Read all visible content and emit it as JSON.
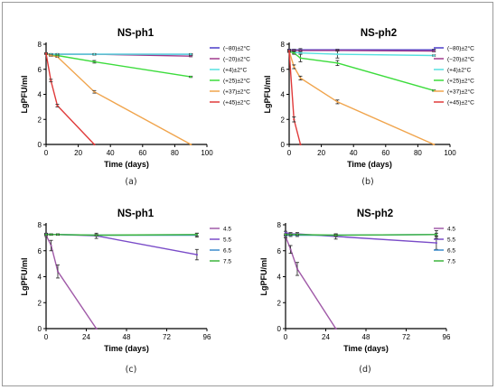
{
  "chart_data": [
    {
      "type": "line",
      "title": "NS-ph1",
      "caption": "(a)",
      "xlabel": "Time (days)",
      "ylabel": "LgPFU/ml",
      "xlim": [
        0,
        100
      ],
      "ylim": [
        0,
        8
      ],
      "xticks": [
        0,
        20,
        40,
        60,
        80,
        100
      ],
      "yticks": [
        0,
        2,
        4,
        6,
        8
      ],
      "legend_position": "right",
      "series": [
        {
          "name": "(−80)±2°C",
          "color": "#4b3cc8",
          "x": [
            0,
            3,
            7,
            30,
            90
          ],
          "y": [
            7.25,
            7.2,
            7.2,
            7.2,
            7.2
          ],
          "err": [
            0.05,
            0.05,
            0.05,
            0.05,
            0.05
          ]
        },
        {
          "name": "(−20)±2°C",
          "color": "#a03a8c",
          "x": [
            0,
            3,
            7,
            30,
            90
          ],
          "y": [
            7.25,
            7.2,
            7.2,
            7.2,
            7.05
          ],
          "err": [
            0.05,
            0.05,
            0.05,
            0.05,
            0.05
          ]
        },
        {
          "name": "(+4)±2°C",
          "color": "#55e0e0",
          "x": [
            0,
            3,
            7,
            30,
            90
          ],
          "y": [
            7.25,
            7.2,
            7.2,
            7.2,
            7.2
          ],
          "err": [
            0.05,
            0.05,
            0.05,
            0.05,
            0.05
          ]
        },
        {
          "name": "(+25)±2°C",
          "color": "#3cdc3c",
          "x": [
            0,
            3,
            7,
            30,
            90
          ],
          "y": [
            7.25,
            7.1,
            7.1,
            6.6,
            5.4
          ],
          "err": [
            0.05,
            0.05,
            0.05,
            0.1,
            0.05
          ]
        },
        {
          "name": "(+37)±2°C",
          "color": "#f0a44c",
          "x": [
            0,
            3,
            7,
            30,
            90
          ],
          "y": [
            7.25,
            7.1,
            7.0,
            4.2,
            0
          ],
          "err": [
            0.05,
            0.05,
            0.05,
            0.1,
            0
          ]
        },
        {
          "name": "(+45)±2°C",
          "color": "#e03a3a",
          "x": [
            0,
            3,
            7,
            30
          ],
          "y": [
            7.25,
            5.1,
            3.1,
            0
          ],
          "err": [
            0.05,
            0.1,
            0.1,
            0
          ]
        }
      ]
    },
    {
      "type": "line",
      "title": "NS-ph2",
      "caption": "(b)",
      "xlabel": "Time (days)",
      "ylabel": "LgPFU/ml",
      "xlim": [
        0,
        100
      ],
      "ylim": [
        0,
        8
      ],
      "xticks": [
        0,
        20,
        40,
        60,
        80,
        100
      ],
      "yticks": [
        0,
        2,
        4,
        6,
        8
      ],
      "legend_position": "right",
      "series": [
        {
          "name": "(−80)±2°C",
          "color": "#4b3cc8",
          "x": [
            0,
            3,
            7,
            30,
            90
          ],
          "y": [
            7.55,
            7.55,
            7.55,
            7.55,
            7.55
          ],
          "err": [
            0.05,
            0.05,
            0.1,
            0.05,
            0.05
          ]
        },
        {
          "name": "(−20)±2°C",
          "color": "#a03a8c",
          "x": [
            0,
            3,
            7,
            30,
            90
          ],
          "y": [
            7.5,
            7.5,
            7.5,
            7.5,
            7.45
          ],
          "err": [
            0.05,
            0.05,
            0.05,
            0.05,
            0.05
          ]
        },
        {
          "name": "(+4)±2°C",
          "color": "#55e0e0",
          "x": [
            0,
            3,
            7,
            30,
            90
          ],
          "y": [
            7.4,
            7.35,
            7.3,
            7.2,
            7.1
          ],
          "err": [
            0.05,
            0.1,
            0.1,
            0.3,
            0.05
          ]
        },
        {
          "name": "(+25)±2°C",
          "color": "#3cdc3c",
          "x": [
            0,
            3,
            7,
            30,
            90
          ],
          "y": [
            7.45,
            7.3,
            6.9,
            6.5,
            4.3
          ],
          "err": [
            0.05,
            0.1,
            0.3,
            0.2,
            0.05
          ]
        },
        {
          "name": "(+37)±2°C",
          "color": "#f0a44c",
          "x": [
            0,
            3,
            7,
            30,
            90
          ],
          "y": [
            7.45,
            6.2,
            5.3,
            3.4,
            0
          ],
          "err": [
            0.05,
            0.15,
            0.15,
            0.15,
            0
          ]
        },
        {
          "name": "(+45)±2°C",
          "color": "#e03a3a",
          "x": [
            0,
            3,
            7
          ],
          "y": [
            7.45,
            2.0,
            0
          ],
          "err": [
            0.05,
            0.2,
            0
          ]
        }
      ]
    },
    {
      "type": "line",
      "title": "NS-ph1",
      "caption": "(c)",
      "xlabel": "Time (days)",
      "ylabel": "LgPFU/ml",
      "xlim": [
        0,
        96
      ],
      "ylim": [
        0,
        8
      ],
      "xticks": [
        0,
        24,
        48,
        72,
        96
      ],
      "yticks": [
        0,
        2,
        4,
        6,
        8
      ],
      "legend_position": "right",
      "series": [
        {
          "name": "4.5",
          "color": "#a05aa8",
          "x": [
            0,
            3,
            7,
            30
          ],
          "y": [
            7.2,
            6.4,
            4.4,
            0
          ],
          "err": [
            0.1,
            0.4,
            0.5,
            0
          ]
        },
        {
          "name": "5.5",
          "color": "#7a4cc8",
          "x": [
            0,
            3,
            7,
            30,
            90
          ],
          "y": [
            7.3,
            7.25,
            7.25,
            7.15,
            5.7
          ],
          "err": [
            0.05,
            0.05,
            0.05,
            0.2,
            0.4
          ]
        },
        {
          "name": "6.5",
          "color": "#3c8ccc",
          "x": [
            0,
            3,
            7,
            30,
            90
          ],
          "y": [
            7.25,
            7.25,
            7.25,
            7.2,
            7.2
          ],
          "err": [
            0.05,
            0.05,
            0.05,
            0.05,
            0.15
          ]
        },
        {
          "name": "7.5",
          "color": "#3cb43c",
          "x": [
            0,
            3,
            7,
            30,
            90
          ],
          "y": [
            7.25,
            7.25,
            7.25,
            7.2,
            7.25
          ],
          "err": [
            0.05,
            0.05,
            0.05,
            0.05,
            0.1
          ]
        }
      ]
    },
    {
      "type": "line",
      "title": "NS-ph2",
      "caption": "(d)",
      "xlabel": "Time (days)",
      "ylabel": "LgPFU/ml",
      "xlim": [
        0,
        96
      ],
      "ylim": [
        0,
        8
      ],
      "xticks": [
        0,
        24,
        48,
        72,
        96
      ],
      "yticks": [
        0,
        2,
        4,
        6,
        8
      ],
      "legend_position": "right",
      "series": [
        {
          "name": "4.5",
          "color": "#a05aa8",
          "x": [
            0,
            3,
            7,
            30
          ],
          "y": [
            7.1,
            6.1,
            4.6,
            0
          ],
          "err": [
            0.1,
            0.3,
            0.5,
            0
          ]
        },
        {
          "name": "5.5",
          "color": "#7a4cc8",
          "x": [
            0,
            3,
            7,
            30,
            90
          ],
          "y": [
            7.4,
            7.3,
            7.3,
            7.1,
            6.6
          ],
          "err": [
            0.1,
            0.1,
            0.1,
            0.2,
            0.5
          ]
        },
        {
          "name": "6.5",
          "color": "#3c8ccc",
          "x": [
            0,
            3,
            7,
            30,
            90
          ],
          "y": [
            7.2,
            7.2,
            7.2,
            7.2,
            7.25
          ],
          "err": [
            0.1,
            0.1,
            0.1,
            0.1,
            0.3
          ]
        },
        {
          "name": "7.5",
          "color": "#3cb43c",
          "x": [
            0,
            3,
            7,
            30,
            90
          ],
          "y": [
            7.25,
            7.25,
            7.25,
            7.2,
            7.25
          ],
          "err": [
            0.05,
            0.05,
            0.05,
            0.05,
            0.1
          ]
        }
      ]
    }
  ]
}
